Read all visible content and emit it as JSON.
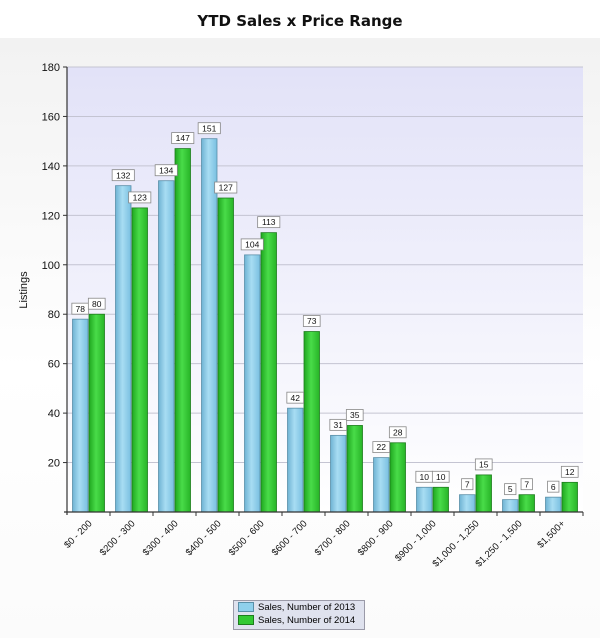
{
  "chart_data": {
    "type": "bar",
    "title": "YTD Sales x Price Range",
    "ylabel": "Listings",
    "xlabel": "",
    "ylim": [
      0,
      180
    ],
    "yticks": [
      20,
      40,
      60,
      80,
      100,
      120,
      140,
      160,
      180
    ],
    "grid": true,
    "legend_position": "bottom",
    "categories": [
      "$0 - 200",
      "$200 - 300",
      "$300 - 400",
      "$400 - 500",
      "$500 - 600",
      "$600 - 700",
      "$700 - 800",
      "$800 - 900",
      "$900 - 1,000",
      "$1,000 - 1,250",
      "$1,250 - 1,500",
      "$1,500+"
    ],
    "series": [
      {
        "name": "Sales, Number of 2013",
        "color": "#8fd0ec",
        "values": [
          78,
          132,
          134,
          151,
          104,
          42,
          31,
          22,
          10,
          7,
          5,
          6
        ]
      },
      {
        "name": "Sales, Number of 2014",
        "color": "#33c933",
        "values": [
          80,
          123,
          147,
          127,
          113,
          73,
          35,
          28,
          10,
          15,
          7,
          12
        ]
      }
    ]
  }
}
